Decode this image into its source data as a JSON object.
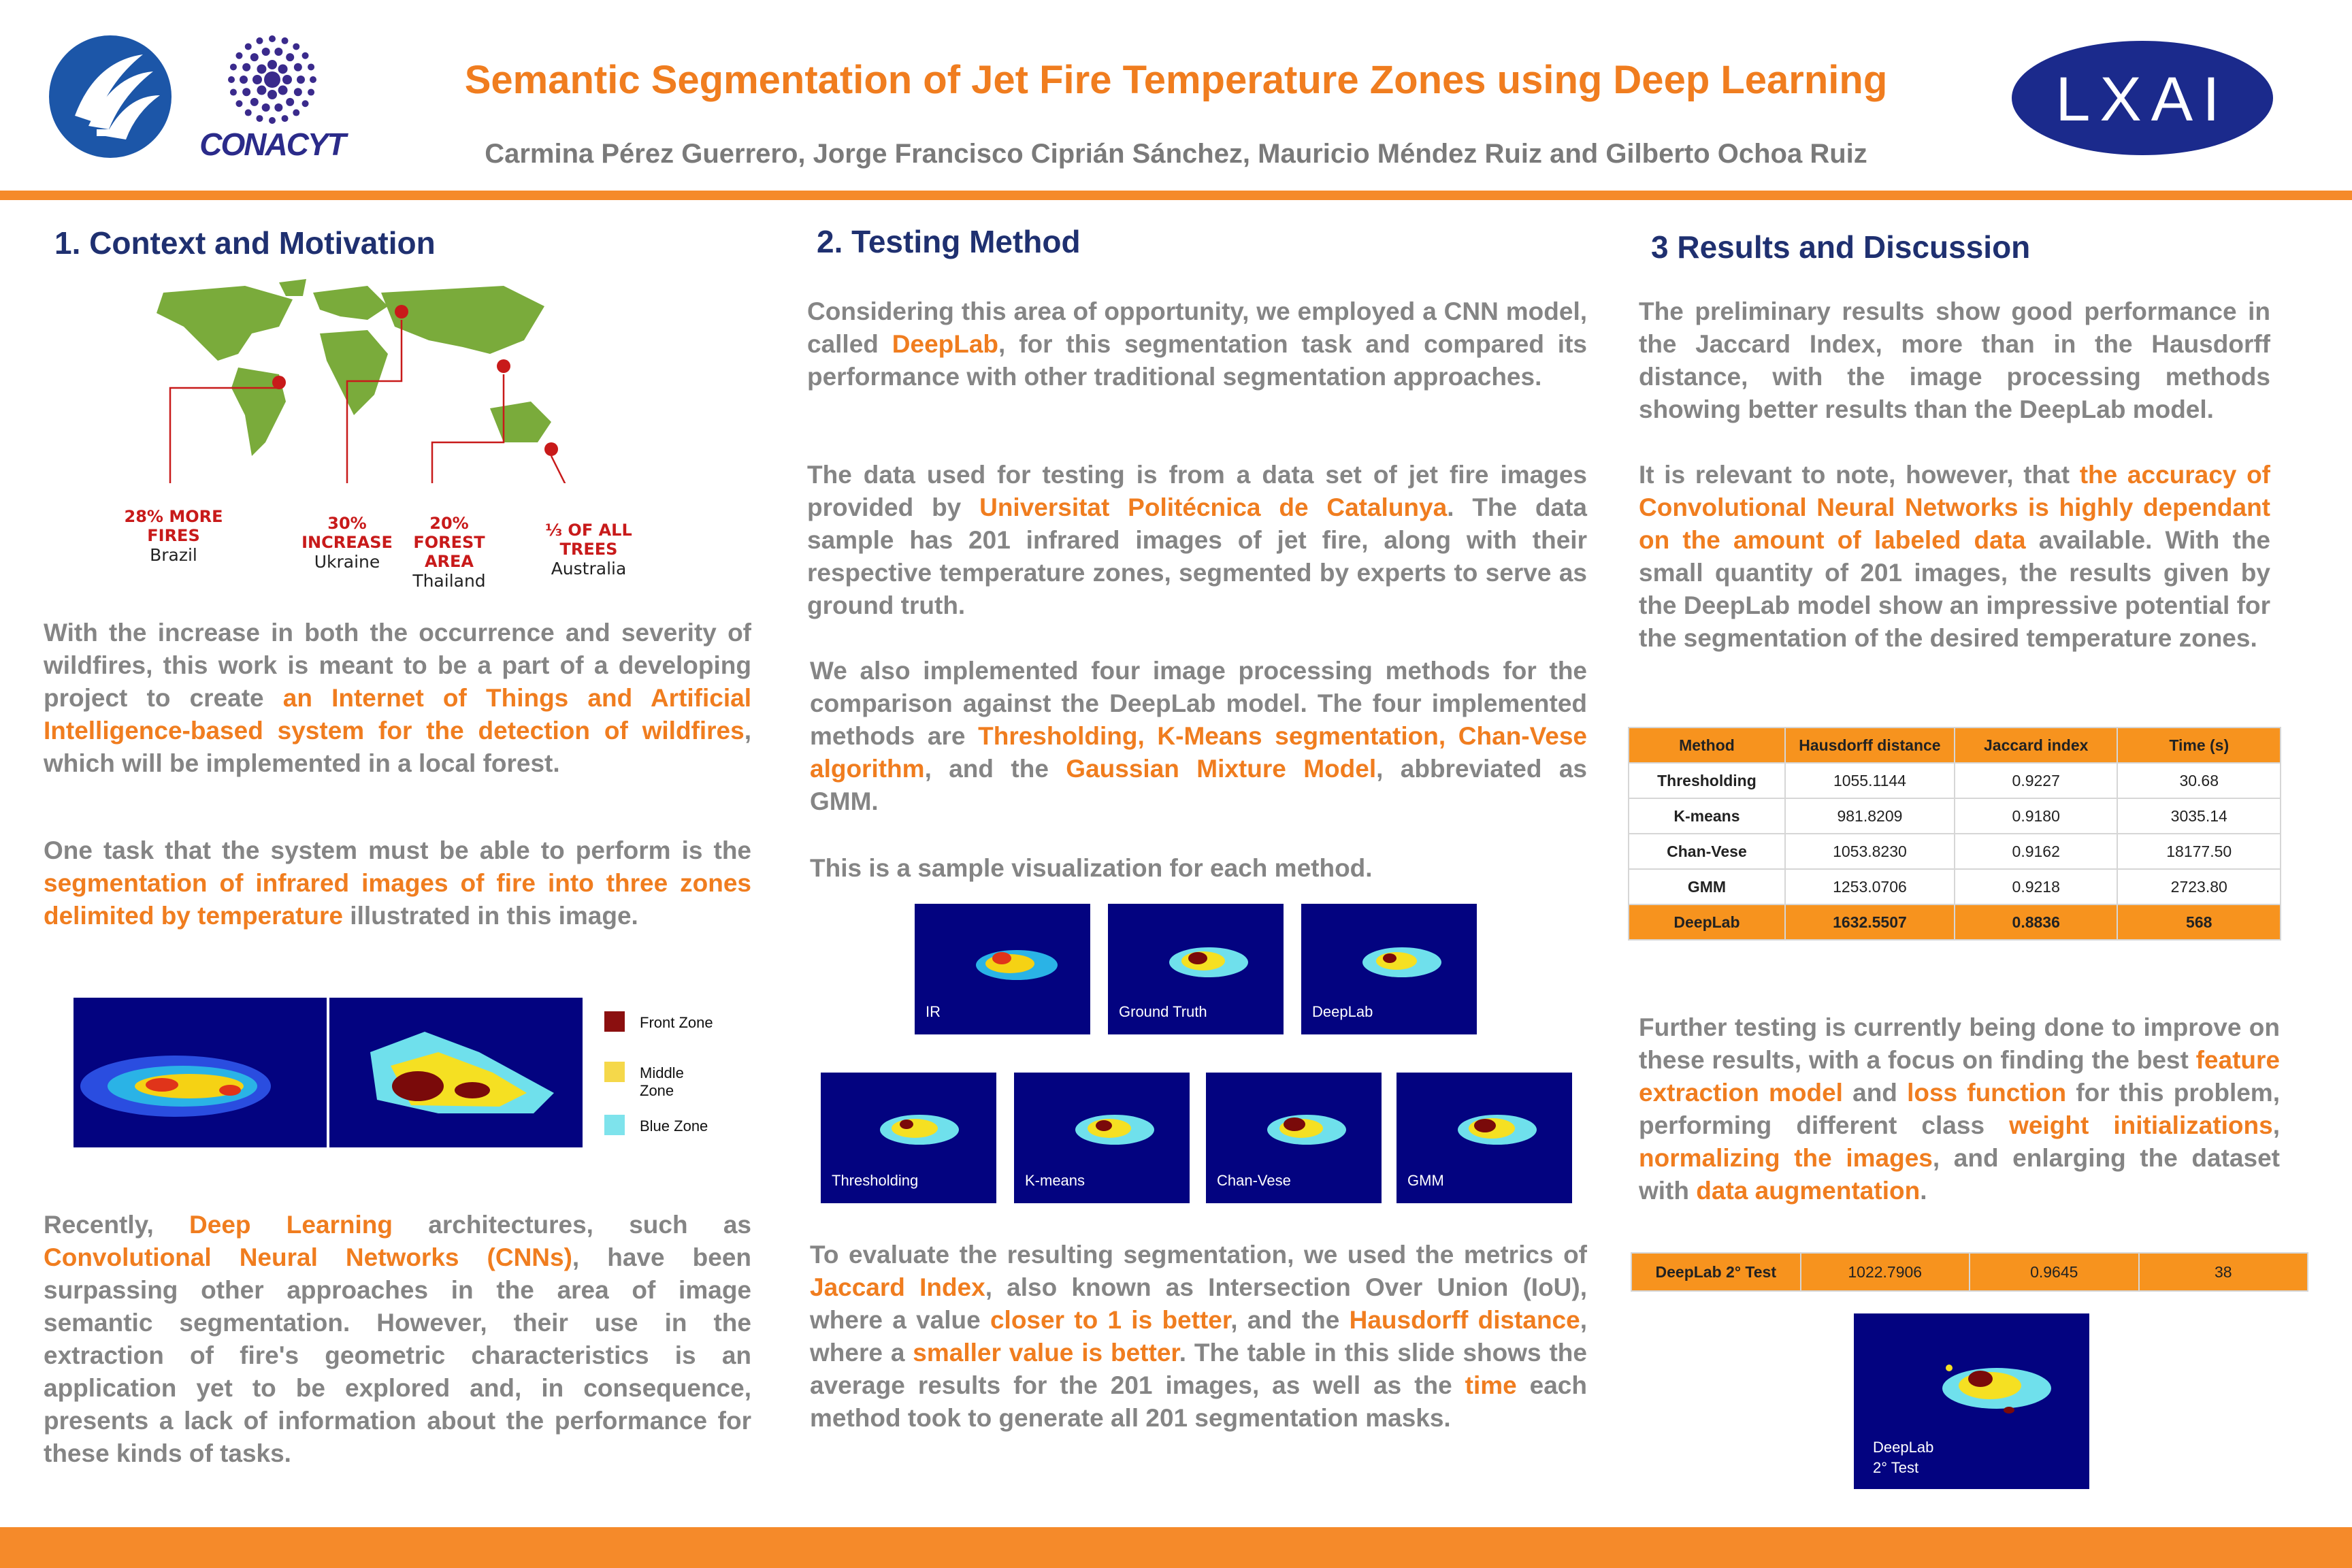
{
  "header": {
    "title": "Semantic Segmentation of Jet Fire Temperature Zones using Deep Learning",
    "authors": "Carmina Pérez Guerrero, Jorge Francisco Ciprián Sánchez, Mauricio Méndez Ruiz and  Gilberto Ochoa Ruiz",
    "logo_left_2": "CONACYT",
    "logo_right": "LXAI"
  },
  "section1": {
    "heading": "1. Context and Motivation",
    "map": [
      {
        "big": "28% MORE\nFIRES",
        "small": "Brazil"
      },
      {
        "big": "30%\nINCREASE",
        "small": "Ukraine"
      },
      {
        "big": "20% FOREST\nAREA",
        "small": "Thailand"
      },
      {
        "big": "⅓ OF ALL\nTREES",
        "small": "Australia"
      }
    ],
    "p1": [
      "With the increase in both the occurrence and severity of wildfires, this work is meant to be a part of a developing project to create ",
      "an Internet of Things and Artificial Intelligence-based system for the detection of wildfires",
      ", which will be implemented in a local forest."
    ],
    "p2": [
      "One task that the system must be able to perform is the ",
      "segmentation of infrared images of fire into three zones delimited by temperature",
      " illustrated in this image."
    ],
    "legend": [
      "Front Zone",
      "Middle Zone",
      "Blue Zone"
    ],
    "p3": [
      "Recently, ",
      "Deep Learning",
      " architectures, such as ",
      "Convolutional Neural Networks (CNNs)",
      ", have been surpassing other approaches in the area of image semantic segmentation. However, their use in the extraction of fire's geometric characteristics is an application yet to be explored and, in consequence, presents a lack of information about the performance for these kinds of tasks."
    ]
  },
  "section2": {
    "heading": "2. Testing Method",
    "p1": [
      "Considering this area of opportunity, we employed a CNN model, called ",
      "DeepLab",
      ", for this segmentation task and compared its performance with other traditional segmentation approaches."
    ],
    "p2": [
      "The data used for testing is from a data set of jet fire images provided by ",
      "Universitat Politécnica de Catalunya",
      ". The data sample has 201 infrared images of jet fire, along with their respective temperature zones, segmented by experts to serve as ground truth."
    ],
    "p3": [
      "We also implemented four image processing methods for the comparison against the DeepLab model. The four implemented methods are ",
      "Thresholding, K-Means segmentation, Chan-Vese algorithm",
      ", and the ",
      "Gaussian Mixture Model",
      ", abbreviated as GMM."
    ],
    "p4": "This is a sample visualization for each method.",
    "thumbs_top": [
      "IR",
      "Ground Truth",
      "DeepLab"
    ],
    "thumbs_bottom": [
      "Thresholding",
      "K-means",
      "Chan-Vese",
      "GMM"
    ],
    "p5": [
      "To evaluate the resulting segmentation, we used the metrics of ",
      "Jaccard Index",
      ", also known as Intersection Over Union (IoU), where a value ",
      "closer to 1 is better",
      ", and the ",
      "Hausdorff distance",
      ", where a ",
      "smaller value is better",
      ". The table in this slide shows the average results for the 201 images, as well as the ",
      "time",
      " each method took to generate all 201 segmentation masks."
    ]
  },
  "section3": {
    "heading": "3 Results and Discussion",
    "p1": "The preliminary results show good performance in the Jaccard Index, more than in the Hausdorff distance, with the image processing methods showing better results than the DeepLab model.",
    "p2": [
      "It is relevant to note, however, that ",
      "the accuracy of Convolutional Neural Networks is highly dependant on the amount of labeled data",
      " available. With the small quantity of 201 images, the results given by the DeepLab model show an impressive potential for the segmentation of the desired temperature zones."
    ],
    "table": {
      "headers": [
        "Method",
        "Hausdorff distance",
        "Jaccard index",
        "Time (s)"
      ],
      "rows": [
        [
          "Thresholding",
          "1055.1144",
          "0.9227",
          "30.68"
        ],
        [
          "K-means",
          "981.8209",
          "0.9180",
          "3035.14"
        ],
        [
          "Chan-Vese",
          "1053.8230",
          "0.9162",
          "18177.50"
        ],
        [
          "GMM",
          "1253.0706",
          "0.9218",
          "2723.80"
        ],
        [
          "DeepLab",
          "1632.5507",
          "0.8836",
          "568"
        ]
      ]
    },
    "p3": [
      "Further testing is currently being done to improve on these results, with a focus on finding the best ",
      "feature extraction model",
      " and ",
      "loss function",
      " for this problem, performing different class ",
      "weight initializations",
      ", ",
      "normalizing the images",
      ", and enlarging the dataset with ",
      "data augmentation",
      "."
    ],
    "table2": [
      "DeepLab 2° Test",
      "1022.7906",
      "0.9645",
      "38"
    ],
    "thumb_label": "DeepLab\n2° Test"
  },
  "colors": {
    "accent": "#f07d1f",
    "heading": "#1f3070",
    "text": "#858585",
    "table_orange": "#f7931e",
    "thumb_bg": "#030380"
  }
}
